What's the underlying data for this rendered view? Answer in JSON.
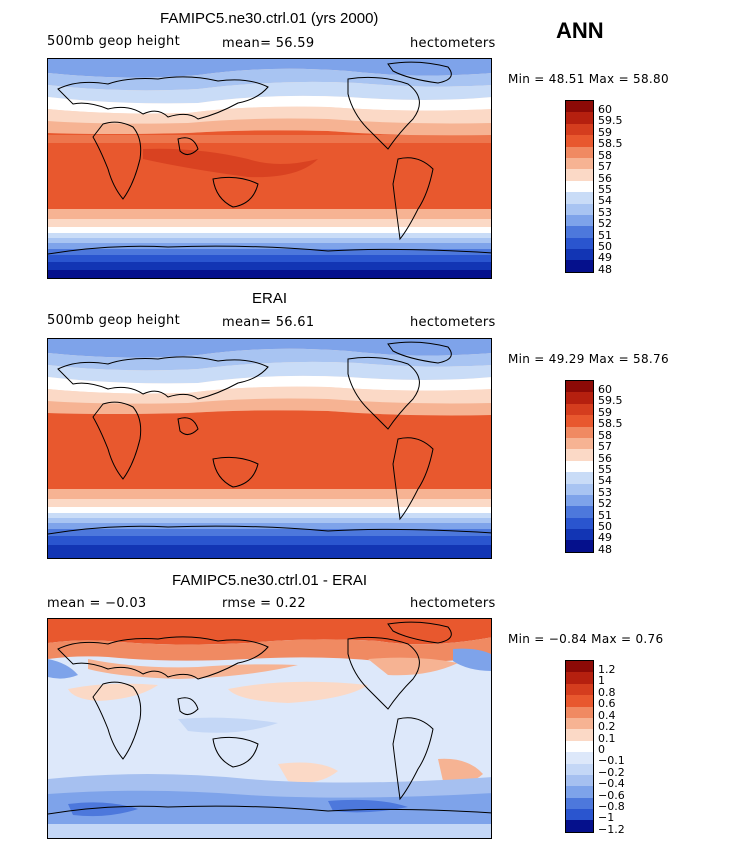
{
  "season": "ANN",
  "panels": [
    {
      "title": "FAMIPC5.ne30.ctrl.01 (yrs 2000)",
      "left_label": "500mb geop height",
      "center_label": "mean=  56.59",
      "right_label": "hectometers",
      "minmax": "Min =  48.51  Max =  58.80",
      "levels": [
        "60",
        "59.5",
        "59",
        "58.5",
        "58",
        "57",
        "56",
        "55",
        "54",
        "53",
        "52",
        "51",
        "50",
        "49",
        "48"
      ],
      "colors": [
        "#8c0a06",
        "#b5200f",
        "#d43d1e",
        "#e8582e",
        "#f08a62",
        "#f6b393",
        "#fbd9c6",
        "#ffffff",
        "#c9dcf7",
        "#a8c4f2",
        "#7ea3ea",
        "#4d78dc",
        "#2a55cf",
        "#1235b4",
        "#05108c"
      ]
    },
    {
      "title": "ERAI",
      "left_label": "500mb geop height",
      "center_label": "mean=  56.61",
      "right_label": "hectometers",
      "minmax": "Min =  49.29  Max =  58.76",
      "levels": [
        "60",
        "59.5",
        "59",
        "58.5",
        "58",
        "57",
        "56",
        "55",
        "54",
        "53",
        "52",
        "51",
        "50",
        "49",
        "48"
      ],
      "colors": [
        "#8c0a06",
        "#b5200f",
        "#d43d1e",
        "#e8582e",
        "#f08a62",
        "#f6b393",
        "#fbd9c6",
        "#ffffff",
        "#c9dcf7",
        "#a8c4f2",
        "#7ea3ea",
        "#4d78dc",
        "#2a55cf",
        "#1235b4",
        "#05108c"
      ]
    },
    {
      "title": "FAMIPC5.ne30.ctrl.01 - ERAI",
      "left_label": "mean =   −0.03",
      "center_label": "rmse =     0.22",
      "right_label": "hectometers",
      "minmax": "Min =  −0.84  Max =    0.76",
      "levels": [
        "1.2",
        "1",
        "0.8",
        "0.6",
        "0.4",
        "0.2",
        "0.1",
        "0",
        "−0.1",
        "−0.2",
        "−0.4",
        "−0.6",
        "−0.8",
        "−1",
        "−1.2"
      ],
      "colors": [
        "#8c0a06",
        "#b5200f",
        "#d43d1e",
        "#e8582e",
        "#f08a62",
        "#f6b393",
        "#fbd9c6",
        "#ffffff",
        "#dde8fa",
        "#c4d7f6",
        "#a6c0f0",
        "#7ea3ea",
        "#4d78dc",
        "#2a55cf",
        "#05108c"
      ]
    }
  ]
}
